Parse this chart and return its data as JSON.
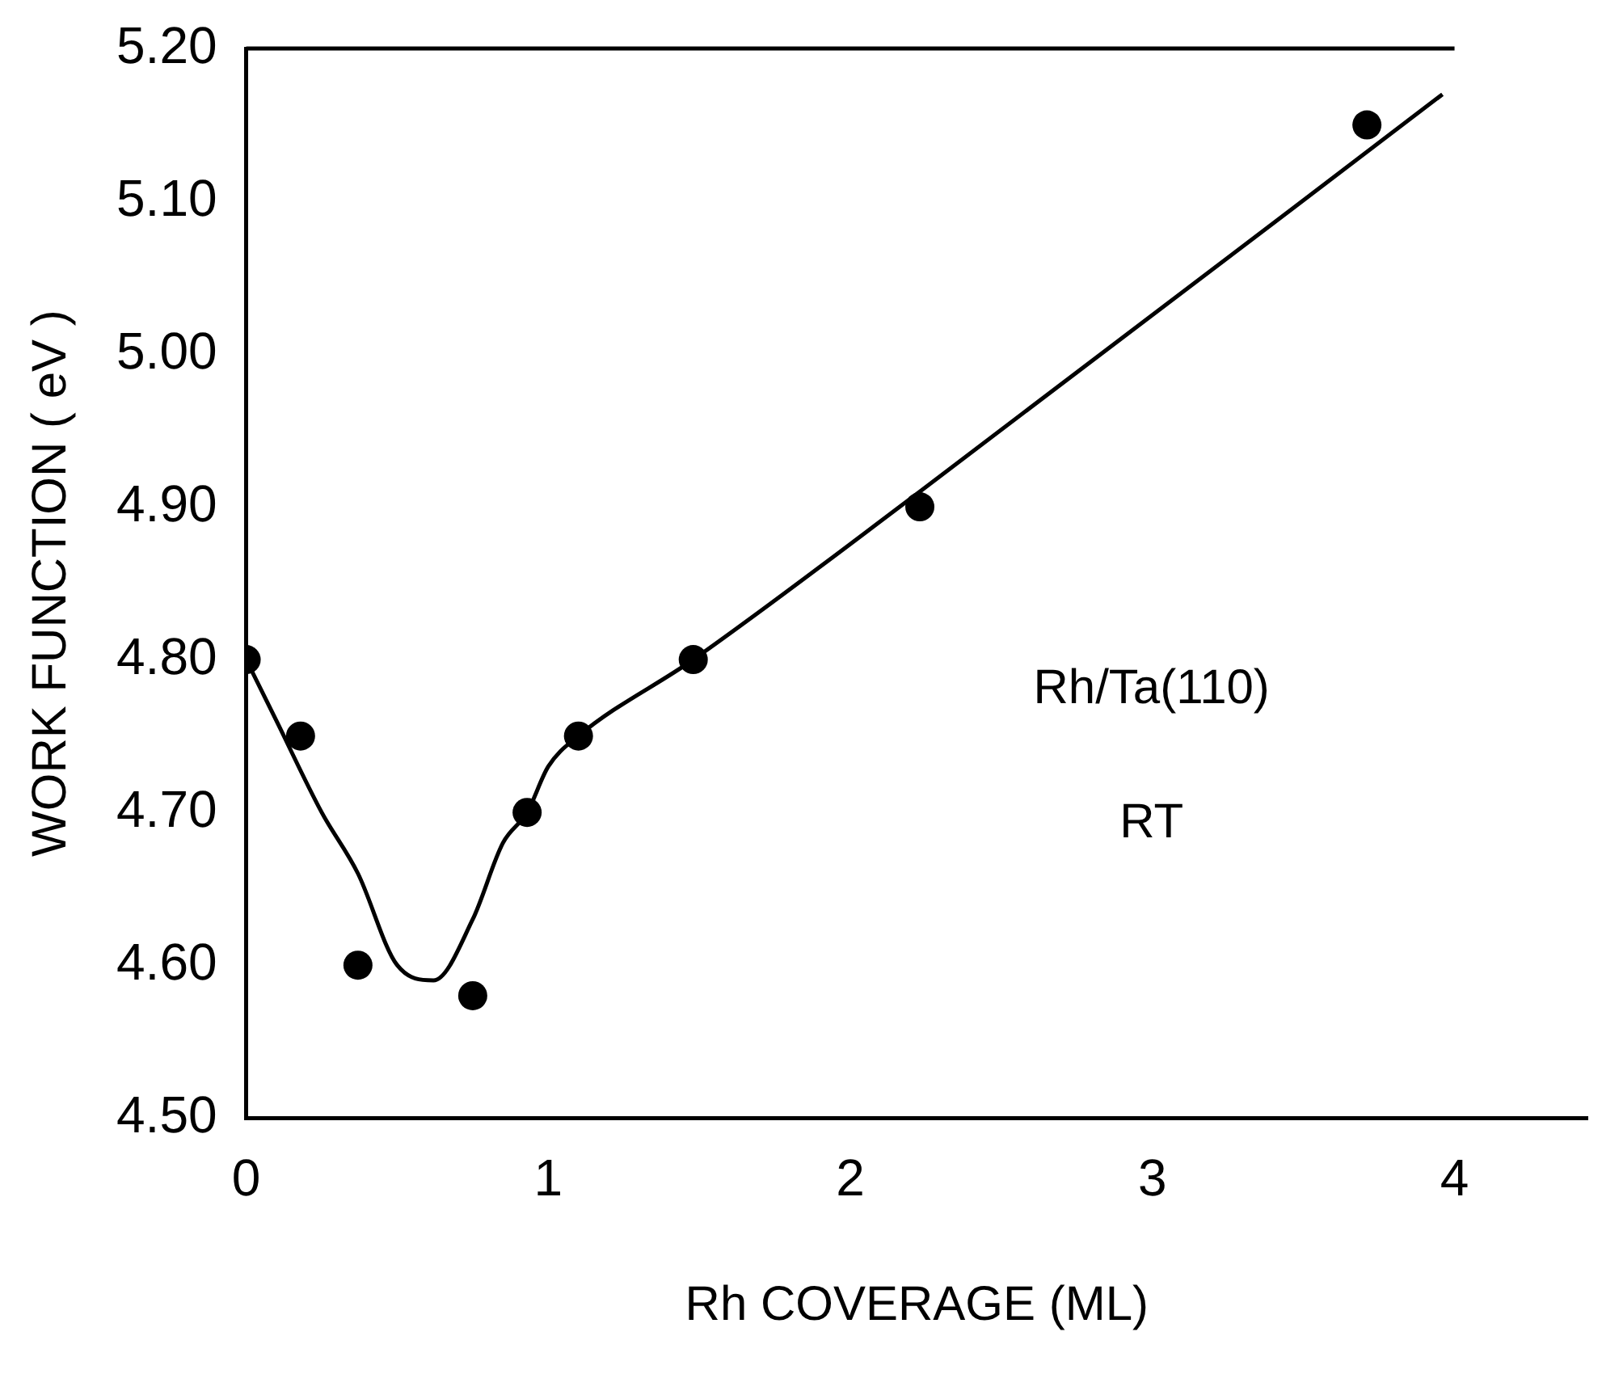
{
  "chart_data": {
    "type": "scatter",
    "xlabel": "Rh COVERAGE (ML)",
    "ylabel": "WORK FUNCTION ( eV )",
    "annotations": [
      "Rh/Ta(110)",
      "RT"
    ],
    "xlim": [
      0,
      4.44
    ],
    "xticks": [
      0,
      1,
      2,
      3,
      4
    ],
    "ylim": [
      4.5,
      5.2
    ],
    "yticks": [
      {
        "value": 4.5,
        "label": "4.50"
      },
      {
        "value": 4.6,
        "label": "4.60"
      },
      {
        "value": 4.7,
        "label": "4.70"
      },
      {
        "value": 4.8,
        "label": "4.80"
      },
      {
        "value": 4.9,
        "label": "4.90"
      },
      {
        "value": 5.0,
        "label": "5.00"
      },
      {
        "value": 5.1,
        "label": "5.10"
      },
      {
        "value": 5.2,
        "label": "5.20"
      }
    ],
    "grid": false,
    "legend": false,
    "marker": "circle",
    "series": [
      {
        "type": "scatter",
        "color": "#000000",
        "x": [
          0,
          0.18,
          0.37,
          0.75,
          0.93,
          1.1,
          1.48,
          2.23,
          3.71
        ],
        "values": [
          4.8,
          4.75,
          4.6,
          4.58,
          4.7,
          4.75,
          4.8,
          4.9,
          5.15
        ]
      },
      {
        "type": "line",
        "color": "#000000",
        "marker": "none",
        "line_style": "solid",
        "x": [
          0,
          0.1,
          0.25,
          0.37,
          0.5,
          0.62,
          0.75,
          0.85,
          0.93,
          1.0,
          1.1,
          1.48,
          2.23,
          3.96
        ],
        "values": [
          4.8,
          4.76,
          4.7,
          4.66,
          4.6,
          4.59,
          4.63,
          4.68,
          4.7,
          4.73,
          4.75,
          4.8,
          4.91,
          5.17
        ]
      }
    ]
  }
}
